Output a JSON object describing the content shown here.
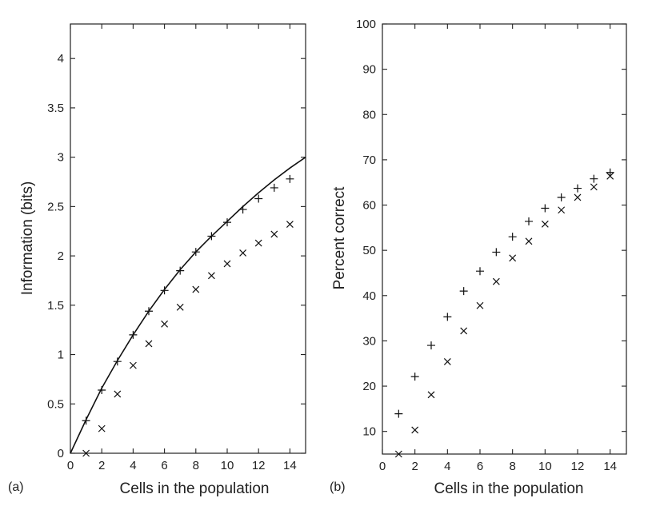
{
  "panels": [
    {
      "label": "(a)",
      "chart_data": {
        "type": "scatter",
        "xlabel": "Cells in the population",
        "ylabel": "Information (bits)",
        "xlim": [
          0,
          15
        ],
        "ylim": [
          0,
          4.35
        ],
        "xticks": [
          0,
          2,
          4,
          6,
          8,
          10,
          12,
          14
        ],
        "yticks": [
          0,
          0.5,
          1,
          1.5,
          2,
          2.5,
          3,
          3.5,
          4
        ],
        "grid": false,
        "legend": "none",
        "series": [
          {
            "marker": "+",
            "x": [
              1,
              2,
              3,
              4,
              5,
              6,
              7,
              8,
              9,
              10,
              11,
              12,
              13,
              14
            ],
            "y": [
              0.33,
              0.64,
              0.93,
              1.2,
              1.44,
              1.65,
              1.85,
              2.04,
              2.2,
              2.34,
              2.47,
              2.58,
              2.69,
              2.78
            ]
          },
          {
            "marker": "x",
            "x": [
              1,
              2,
              3,
              4,
              5,
              6,
              7,
              8,
              9,
              10,
              11,
              12,
              13,
              14
            ],
            "y": [
              0.0,
              0.25,
              0.6,
              0.89,
              1.11,
              1.31,
              1.48,
              1.66,
              1.8,
              1.92,
              2.03,
              2.13,
              2.22,
              2.32
            ]
          },
          {
            "marker": "line",
            "x": [
              0,
              1,
              2,
              3,
              4,
              5,
              6,
              7,
              8,
              9,
              10,
              11,
              12,
              13,
              14,
              15
            ],
            "y": [
              0,
              0.34,
              0.66,
              0.94,
              1.2,
              1.44,
              1.66,
              1.86,
              2.04,
              2.2,
              2.35,
              2.5,
              2.64,
              2.77,
              2.89,
              3.0
            ]
          }
        ]
      }
    },
    {
      "label": "(b)",
      "chart_data": {
        "type": "scatter",
        "xlabel": "Cells in the population",
        "ylabel": "Percent correct",
        "xlim": [
          0,
          15
        ],
        "ylim": [
          5,
          100
        ],
        "xticks": [
          0,
          2,
          4,
          6,
          8,
          10,
          12,
          14
        ],
        "yticks": [
          10,
          20,
          30,
          40,
          50,
          60,
          70,
          80,
          90,
          100
        ],
        "grid": false,
        "legend": "none",
        "series": [
          {
            "marker": "+",
            "x": [
              1,
              2,
              3,
              4,
              5,
              6,
              7,
              8,
              9,
              10,
              11,
              12,
              13,
              14
            ],
            "y": [
              13.9,
              22.1,
              29.0,
              35.3,
              41.0,
              45.4,
              49.6,
              53.0,
              56.4,
              59.3,
              61.7,
              63.7,
              65.8,
              67.2
            ]
          },
          {
            "marker": "x",
            "x": [
              1,
              2,
              3,
              4,
              5,
              6,
              7,
              8,
              9,
              10,
              11,
              12,
              13,
              14
            ],
            "y": [
              5.0,
              10.3,
              18.1,
              25.4,
              32.2,
              37.8,
              43.1,
              48.3,
              52.0,
              55.8,
              58.9,
              61.7,
              64.0,
              66.4
            ]
          }
        ]
      }
    }
  ]
}
